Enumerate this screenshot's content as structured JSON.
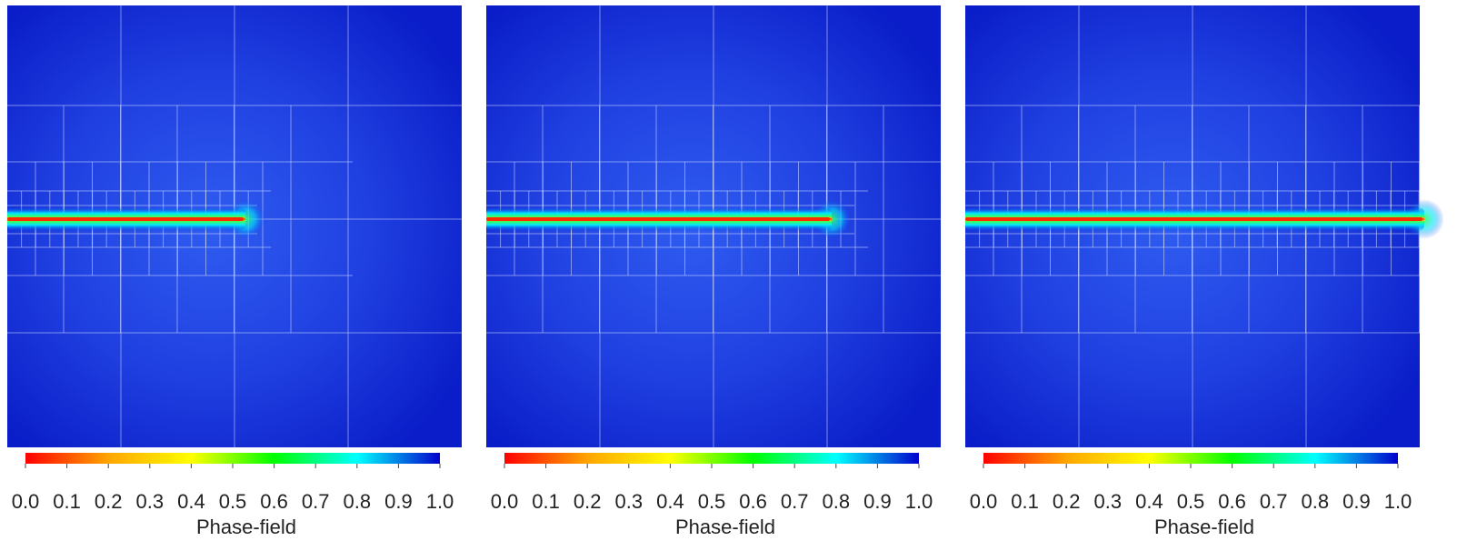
{
  "panels": [
    {
      "colorbar": {
        "title": "Phase-field",
        "ticks": [
          "0.0",
          "0.1",
          "0.2",
          "0.3",
          "0.4",
          "0.5",
          "0.6",
          "0.7",
          "0.8",
          "0.9",
          "1.0"
        ]
      }
    },
    {
      "colorbar": {
        "title": "Phase-field",
        "ticks": [
          "0.0",
          "0.1",
          "0.2",
          "0.3",
          "0.4",
          "0.5",
          "0.6",
          "0.7",
          "0.8",
          "0.9",
          "1.0"
        ]
      }
    },
    {
      "colorbar": {
        "title": "Phase-field",
        "ticks": [
          "0.0",
          "0.1",
          "0.2",
          "0.3",
          "0.4",
          "0.5",
          "0.6",
          "0.7",
          "0.8",
          "0.9",
          "1.0"
        ]
      }
    }
  ],
  "colormap": [
    "#ff0000",
    "#ffa500",
    "#ffff00",
    "#00ff00",
    "#00ffff",
    "#0000cc"
  ]
}
